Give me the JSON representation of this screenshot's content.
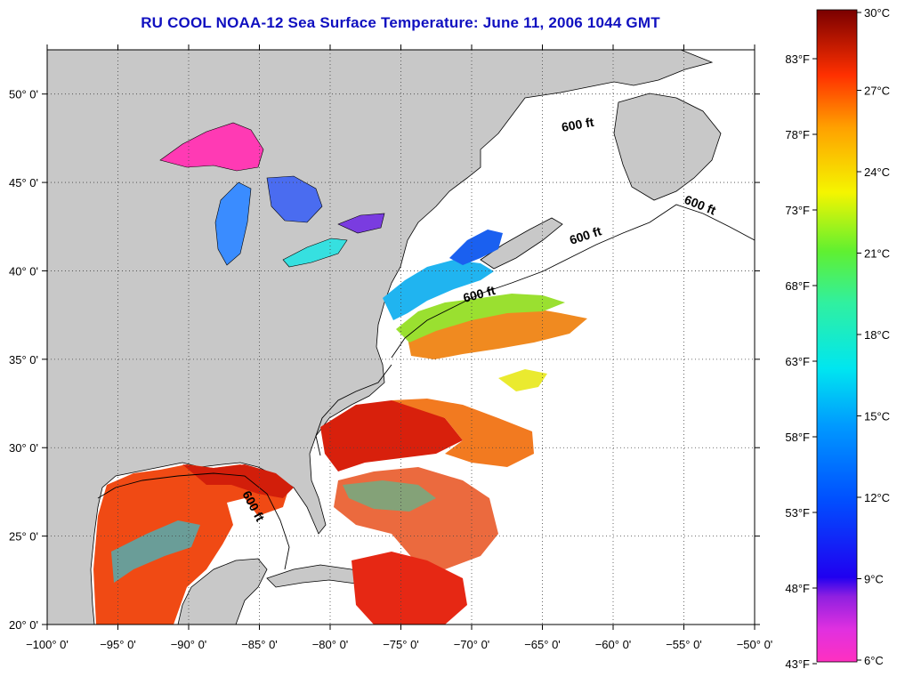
{
  "title": "RU COOL  NOAA-12  Sea Surface Temperature:  June 11, 2006 1044 GMT",
  "map": {
    "lon_range": [
      -100,
      -50
    ],
    "lat_range": [
      20,
      52.5
    ],
    "lon_ticks": [
      {
        "value": -100,
        "label": "−100° 0'"
      },
      {
        "value": -95,
        "label": "−95° 0'"
      },
      {
        "value": -90,
        "label": "−90° 0'"
      },
      {
        "value": -85,
        "label": "−85° 0'"
      },
      {
        "value": -80,
        "label": "−80° 0'"
      },
      {
        "value": -75,
        "label": "−75° 0'"
      },
      {
        "value": -70,
        "label": "−70° 0'"
      },
      {
        "value": -65,
        "label": "−65° 0'"
      },
      {
        "value": -60,
        "label": "−60° 0'"
      },
      {
        "value": -55,
        "label": "−55° 0'"
      },
      {
        "value": -50,
        "label": "−50° 0'"
      }
    ],
    "lat_ticks": [
      {
        "value": 20,
        "label": "20° 0'"
      },
      {
        "value": 25,
        "label": "25° 0'"
      },
      {
        "value": 30,
        "label": "30° 0'"
      },
      {
        "value": 35,
        "label": "35° 0'"
      },
      {
        "value": 40,
        "label": "40° 0'"
      },
      {
        "value": 45,
        "label": "45° 0'"
      },
      {
        "value": 50,
        "label": "50° 0'"
      }
    ],
    "grid": "dotted",
    "land_color": "#c8c8c8",
    "ocean_nodata_color": "#ffffff",
    "contour_label": "600 ft",
    "contour_label_count": 5
  },
  "colorbar": {
    "celsius_labels": [
      "30°C",
      "27°C",
      "24°C",
      "21°C",
      "18°C",
      "15°C",
      "12°C",
      "9°C",
      "6°C"
    ],
    "fahrenheit_labels": [
      "83°F",
      "78°F",
      "73°F",
      "68°F",
      "63°F",
      "58°F",
      "53°F",
      "48°F",
      "43°F"
    ],
    "colors": [
      "#7a0000",
      "#ff1a00",
      "#ff8c00",
      "#f5f500",
      "#3cf03c",
      "#00e6f0",
      "#0070ff",
      "#0000f0",
      "#ff30c0"
    ]
  }
}
